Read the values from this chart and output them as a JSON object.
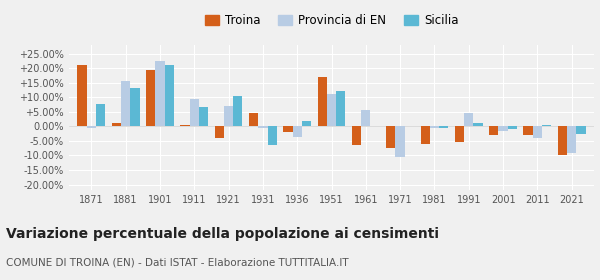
{
  "years": [
    1871,
    1881,
    1901,
    1911,
    1921,
    1931,
    1936,
    1951,
    1961,
    1971,
    1981,
    1991,
    2001,
    2011,
    2021
  ],
  "troina": [
    21.0,
    1.0,
    19.5,
    0.5,
    -4.0,
    4.5,
    -2.0,
    17.0,
    -6.5,
    -7.5,
    -6.0,
    -5.5,
    -3.0,
    -3.0,
    -10.0
  ],
  "provincia_en": [
    -0.5,
    15.5,
    22.5,
    9.5,
    7.0,
    -0.5,
    -3.5,
    11.0,
    5.5,
    -10.5,
    -0.5,
    4.5,
    -1.5,
    -4.0,
    -9.0
  ],
  "sicilia": [
    7.5,
    13.0,
    21.0,
    6.5,
    10.5,
    -6.5,
    2.0,
    12.0,
    0.0,
    0.0,
    -0.5,
    1.0,
    -1.0,
    0.5,
    -2.5
  ],
  "color_troina": "#d45f1a",
  "color_provincia": "#b8cce4",
  "color_sicilia": "#5bb8d4",
  "title": "Variazione percentuale della popolazione ai censimenti",
  "subtitle": "COMUNE DI TROINA (EN) - Dati ISTAT - Elaborazione TUTTITALIA.IT",
  "ylim": [
    -22,
    28
  ],
  "yticks": [
    -20,
    -15,
    -10,
    -5,
    0,
    5,
    10,
    15,
    20,
    25
  ],
  "ytick_labels": [
    "-20.00%",
    "-15.00%",
    "-10.00%",
    "-5.00%",
    "0.00%",
    "+5.00%",
    "+10.00%",
    "+15.00%",
    "+20.00%",
    "+25.00%"
  ],
  "bar_width": 0.27,
  "background_color": "#f0f0f0",
  "grid_color": "#ffffff",
  "legend_fontsize": 8.5,
  "tick_fontsize": 7,
  "title_fontsize": 10,
  "subtitle_fontsize": 7.5
}
